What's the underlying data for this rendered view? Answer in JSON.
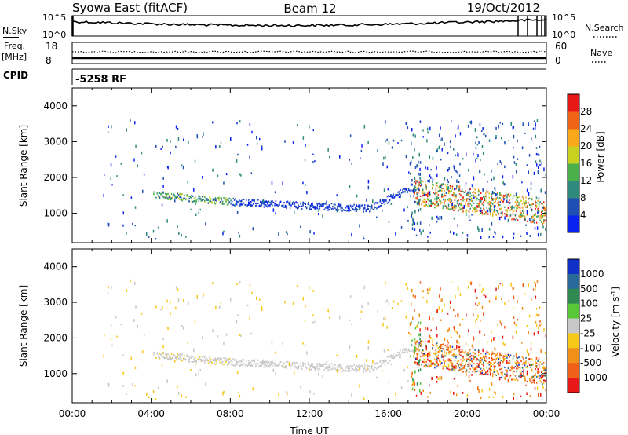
{
  "header": {
    "title": "Syowa East (fitACF)",
    "beam": "Beam 12",
    "date": "19/Oct/2012"
  },
  "top_panels": {
    "nsky_label": "N.Sky",
    "nsky_ticks": [
      "10^5",
      "10^0"
    ],
    "nsearch_label": "N.Search",
    "nsearch_ticks": [
      "10^5",
      "10^0"
    ],
    "freq_label": "Freq.",
    "freq_unit": "[MHz]",
    "freq_ticks": [
      "18",
      "8"
    ],
    "nave_label": "Nave",
    "nave_ticks": [
      "60",
      "0"
    ],
    "cpid_label": "CPID",
    "cpid_value": "-5258 RF"
  },
  "chart_data": [
    {
      "type": "heatmap",
      "parameter": "power",
      "ylabel": "Slant Range [km]",
      "xlabel": "",
      "x_ticks": [
        "00:00",
        "04:00",
        "08:00",
        "12:00",
        "16:00",
        "20:00",
        "00:00"
      ],
      "xlim_hours": [
        0,
        24
      ],
      "y_ticks": [
        1000,
        2000,
        3000,
        4000
      ],
      "ylim_km": [
        180,
        4500
      ],
      "colorbar": {
        "label": "Power [dB]",
        "ticks": [
          "4",
          "8",
          "12",
          "16",
          "20",
          "24",
          "28"
        ],
        "colors": [
          "#0a22f0",
          "#1f4fb4",
          "#2f8a7e",
          "#49b04a",
          "#c8d020",
          "#f8a818",
          "#f06418",
          "#e81818"
        ]
      },
      "features": [
        {
          "start_h": 4.1,
          "end_h": 8.0,
          "start_km": 1500,
          "end_km": 1300
        },
        {
          "start_h": 8.0,
          "end_h": 15.0,
          "start_km": 1300,
          "end_km": 1100
        },
        {
          "start_h": 15.0,
          "end_h": 17.2,
          "start_km": 1100,
          "end_km": 1700
        },
        {
          "start_h": 17.0,
          "end_h": 24.0,
          "start_km": 1600,
          "end_km": 1000
        }
      ]
    },
    {
      "type": "heatmap",
      "parameter": "velocity",
      "ylabel": "Slant Range [km]",
      "xlabel": "Time UT",
      "x_ticks": [
        "00:00",
        "04:00",
        "08:00",
        "12:00",
        "16:00",
        "20:00",
        "00:00"
      ],
      "xlim_hours": [
        0,
        24
      ],
      "y_ticks": [
        1000,
        2000,
        3000,
        4000
      ],
      "ylim_km": [
        180,
        4500
      ],
      "colorbar": {
        "label": "Velocity [m s^-1]",
        "ticks": [
          "1000",
          "500",
          "100",
          "25",
          "-25",
          "-100",
          "-500",
          "-1000"
        ],
        "colors": [
          "#1030c8",
          "#2a6a9a",
          "#2e8a50",
          "#58c838",
          "#c8c8c8",
          "#f8c818",
          "#f09018",
          "#f06018",
          "#e81818"
        ]
      }
    }
  ]
}
